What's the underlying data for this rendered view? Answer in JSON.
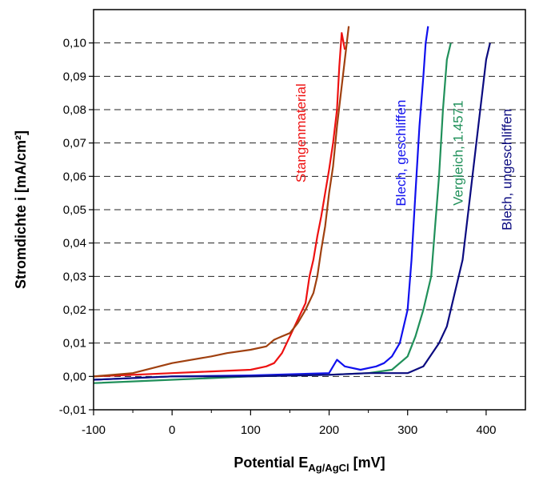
{
  "chart_data": {
    "type": "line",
    "xlabel_main": "Potential E",
    "xlabel_sub": "Ag/AgCl",
    "xlabel_unit": " [mV]",
    "ylabel": "Stromdichte i [mA/cm²]",
    "xlim": [
      -100,
      450
    ],
    "ylim": [
      -0.01,
      0.11
    ],
    "x_ticks": [
      -100,
      0,
      100,
      200,
      300,
      400
    ],
    "x_tick_labels": [
      "-100",
      "0",
      "100",
      "200",
      "300",
      "400"
    ],
    "y_ticks": [
      -0.01,
      0.0,
      0.01,
      0.02,
      0.03,
      0.04,
      0.05,
      0.06,
      0.07,
      0.08,
      0.09,
      0.1
    ],
    "y_tick_labels": [
      "-0,01",
      "0,00",
      "0,01",
      "0,02",
      "0,03",
      "0,04",
      "0,05",
      "0,06",
      "0,07",
      "0,08",
      "0,09",
      "0,10"
    ],
    "grid": "horizontal-dashed",
    "series": [
      {
        "name": "Stangenmaterial",
        "color": "#ee1111",
        "label_position": [
          170,
          0.073
        ],
        "x": [
          -100,
          -50,
          0,
          50,
          100,
          120,
          130,
          140,
          150,
          160,
          170,
          175,
          180,
          185,
          190,
          195,
          200,
          205,
          210,
          213,
          216,
          220
        ],
        "y": [
          0.0,
          0.0005,
          0.001,
          0.0015,
          0.002,
          0.003,
          0.004,
          0.007,
          0.012,
          0.017,
          0.022,
          0.03,
          0.035,
          0.042,
          0.048,
          0.055,
          0.062,
          0.07,
          0.08,
          0.093,
          0.103,
          0.098
        ]
      },
      {
        "name": "",
        "color": "#a0400f",
        "x": [
          -100,
          -50,
          0,
          50,
          70,
          100,
          120,
          130,
          140,
          150,
          160,
          170,
          180,
          185,
          190,
          195,
          200,
          205,
          210,
          215,
          220,
          225
        ],
        "y": [
          0.0,
          0.001,
          0.004,
          0.006,
          0.007,
          0.008,
          0.009,
          0.011,
          0.012,
          0.013,
          0.016,
          0.02,
          0.025,
          0.03,
          0.038,
          0.045,
          0.055,
          0.063,
          0.075,
          0.085,
          0.095,
          0.105
        ]
      },
      {
        "name": "Blech, geschliffen",
        "color": "#1010ee",
        "label_position": [
          297,
          0.067
        ],
        "x": [
          -100,
          0,
          100,
          200,
          210,
          220,
          240,
          260,
          270,
          280,
          290,
          300,
          305,
          310,
          315,
          320,
          323,
          326
        ],
        "y": [
          -0.001,
          0.0,
          0.0003,
          0.001,
          0.005,
          0.003,
          0.002,
          0.003,
          0.004,
          0.006,
          0.01,
          0.02,
          0.035,
          0.055,
          0.075,
          0.09,
          0.1,
          0.105
        ]
      },
      {
        "name": "Vergleich, 1.4571",
        "color": "#20905a",
        "label_position": [
          370,
          0.067
        ],
        "x": [
          -100,
          0,
          100,
          200,
          250,
          280,
          300,
          310,
          320,
          330,
          335,
          340,
          345,
          350,
          355
        ],
        "y": [
          -0.002,
          -0.001,
          0.0,
          0.0005,
          0.001,
          0.002,
          0.006,
          0.012,
          0.02,
          0.03,
          0.045,
          0.06,
          0.08,
          0.095,
          0.1
        ]
      },
      {
        "name": "Blech, ungeschliffen",
        "color": "#0b0b80",
        "label_position": [
          432,
          0.062
        ],
        "x": [
          -100,
          0,
          100,
          200,
          250,
          300,
          320,
          340,
          350,
          360,
          370,
          375,
          380,
          385,
          390,
          395,
          400,
          405
        ],
        "y": [
          -0.001,
          0.0,
          0.0,
          0.0005,
          0.001,
          0.001,
          0.003,
          0.01,
          0.015,
          0.025,
          0.035,
          0.045,
          0.055,
          0.065,
          0.075,
          0.085,
          0.095,
          0.1
        ]
      }
    ]
  }
}
